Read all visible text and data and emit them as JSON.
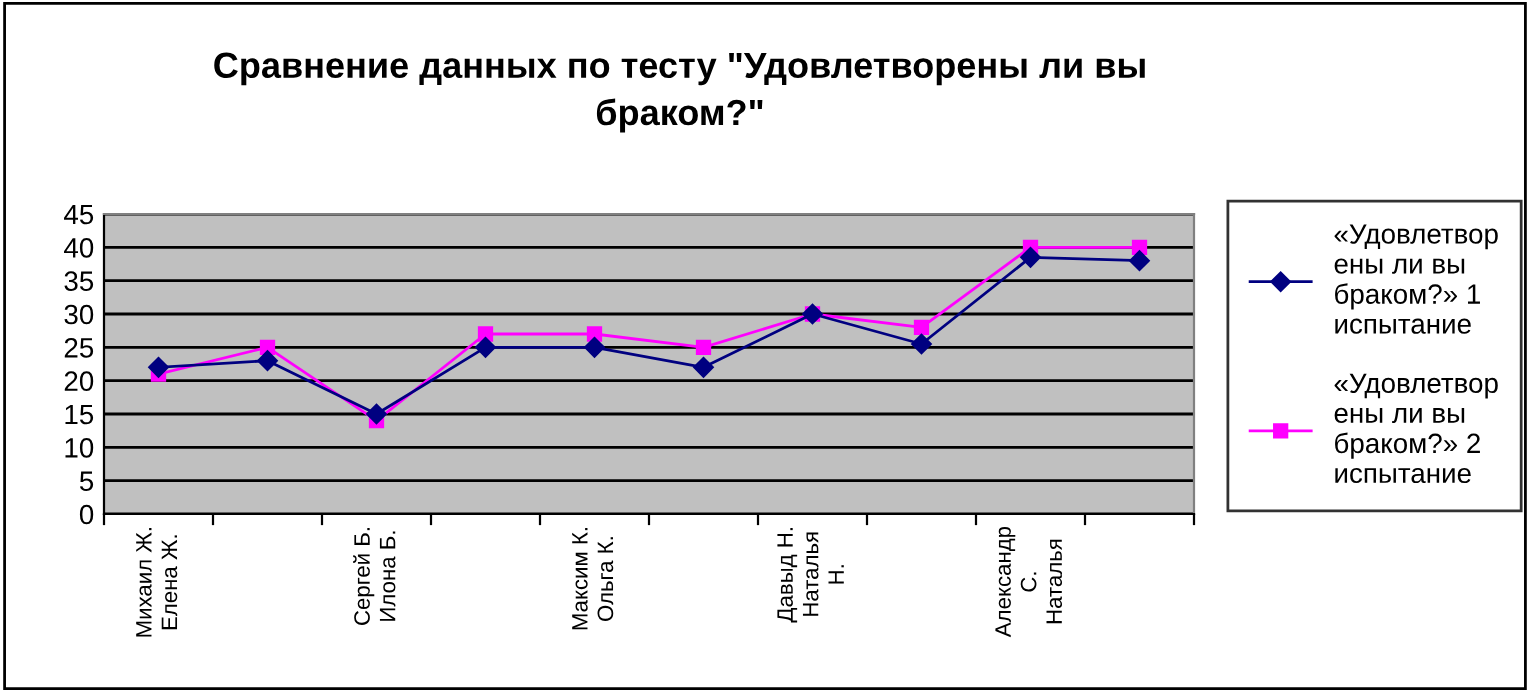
{
  "chart_data": {
    "type": "line",
    "title": "Сравнение данных по тесту \"Удовлетворены ли вы браком?\"",
    "categories": [
      "Михаил Ж. Елена Ж.",
      null,
      "Сергей Б. Илона Б.",
      null,
      "Максим К. Ольга К.",
      null,
      "Давыд Н. Наталья Н.",
      null,
      "Александр С. Наталья",
      null
    ],
    "series": [
      {
        "name": "«Удовлетворены ли вы браком?» 1 испытание",
        "color": "#000080",
        "marker": "diamond",
        "values": [
          22,
          23,
          15,
          25,
          25,
          22,
          30,
          25.5,
          38.5,
          38
        ]
      },
      {
        "name": "«Удовлетворены ли вы браком?» 2 испытание",
        "color": "#ff00ff",
        "marker": "square",
        "values": [
          21,
          25,
          14,
          27,
          27,
          25,
          30,
          28,
          40,
          40
        ]
      }
    ],
    "ylim": [
      0,
      45
    ],
    "yticks": [
      0,
      5,
      10,
      15,
      20,
      25,
      30,
      35,
      40,
      45
    ],
    "grid": "y",
    "legend": "right",
    "line_style": "solid"
  }
}
